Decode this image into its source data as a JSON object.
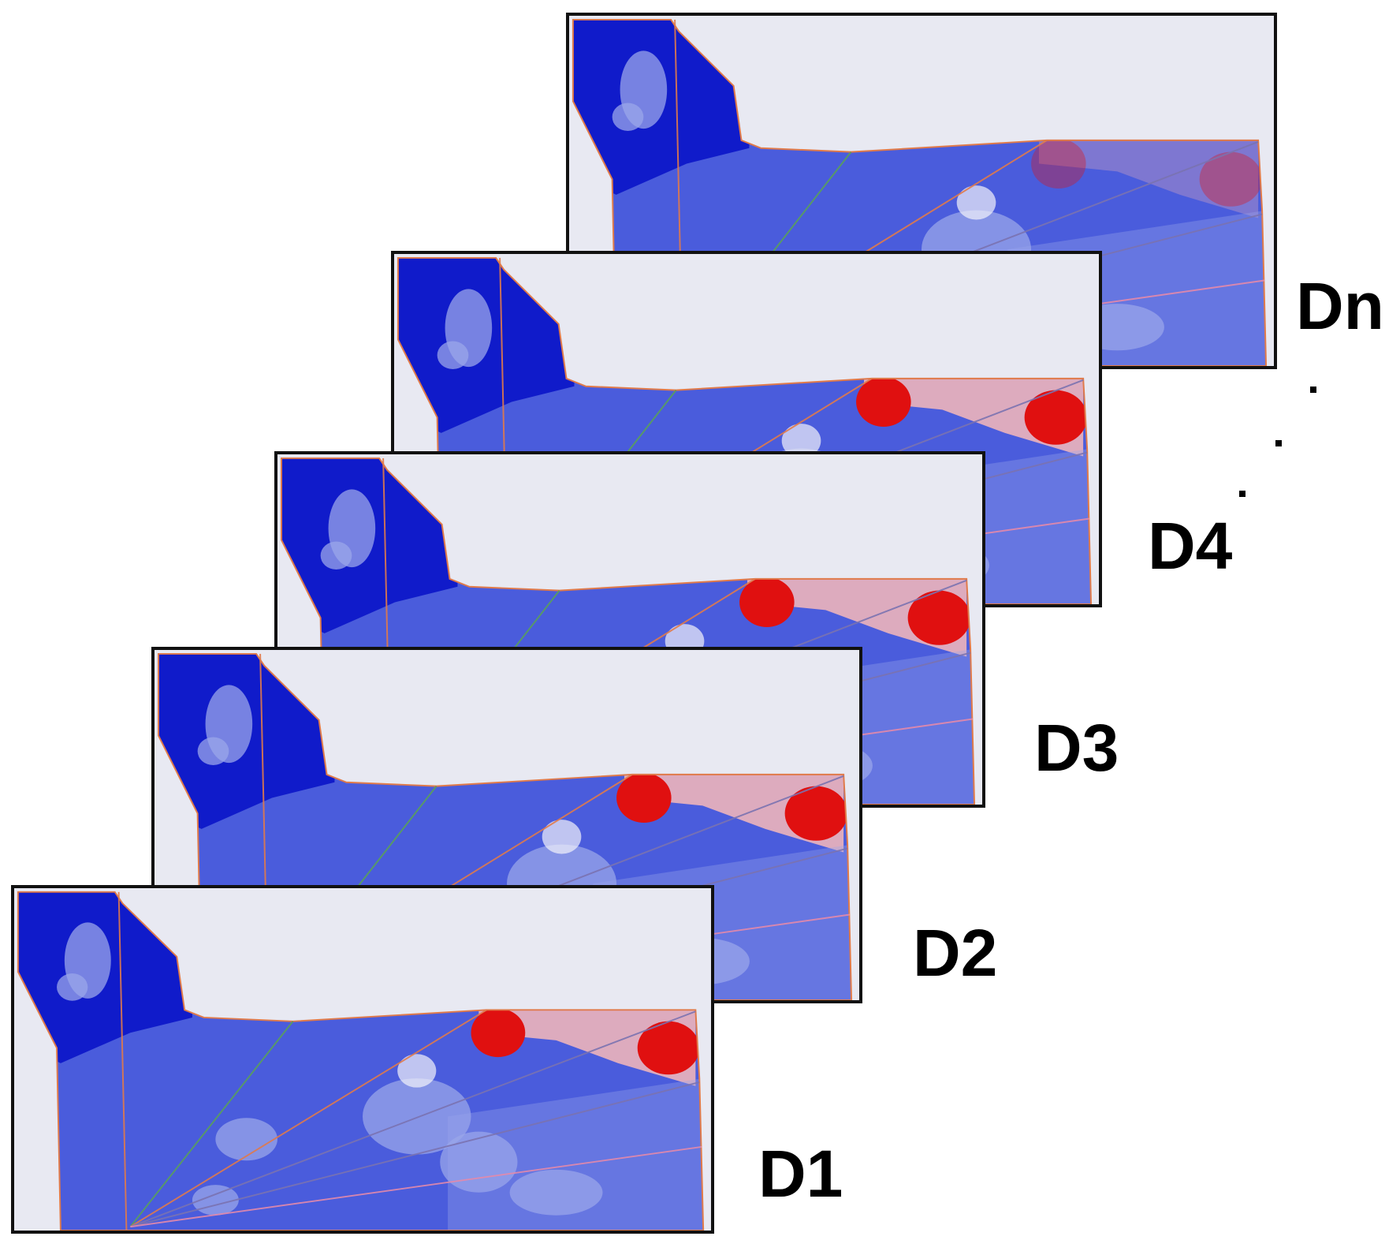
{
  "panels": [
    {
      "label": "Dn"
    },
    {
      "label": "D4"
    },
    {
      "label": "D3"
    },
    {
      "label": "D2"
    },
    {
      "label": "D1"
    }
  ],
  "colors": {
    "background": "#e8e9f2",
    "deep_blue": "#0a14c8",
    "mid_blue": "#4a5cdc",
    "light_blue": "#9aa6ea",
    "white": "#f2f2fa",
    "red": "#e01010",
    "light_red": "#f7b8b8",
    "line_orange": "#e07a4a",
    "line_green": "#5aa05a",
    "line_purple": "#7a72b0",
    "line_pink": "#e48aaa"
  }
}
